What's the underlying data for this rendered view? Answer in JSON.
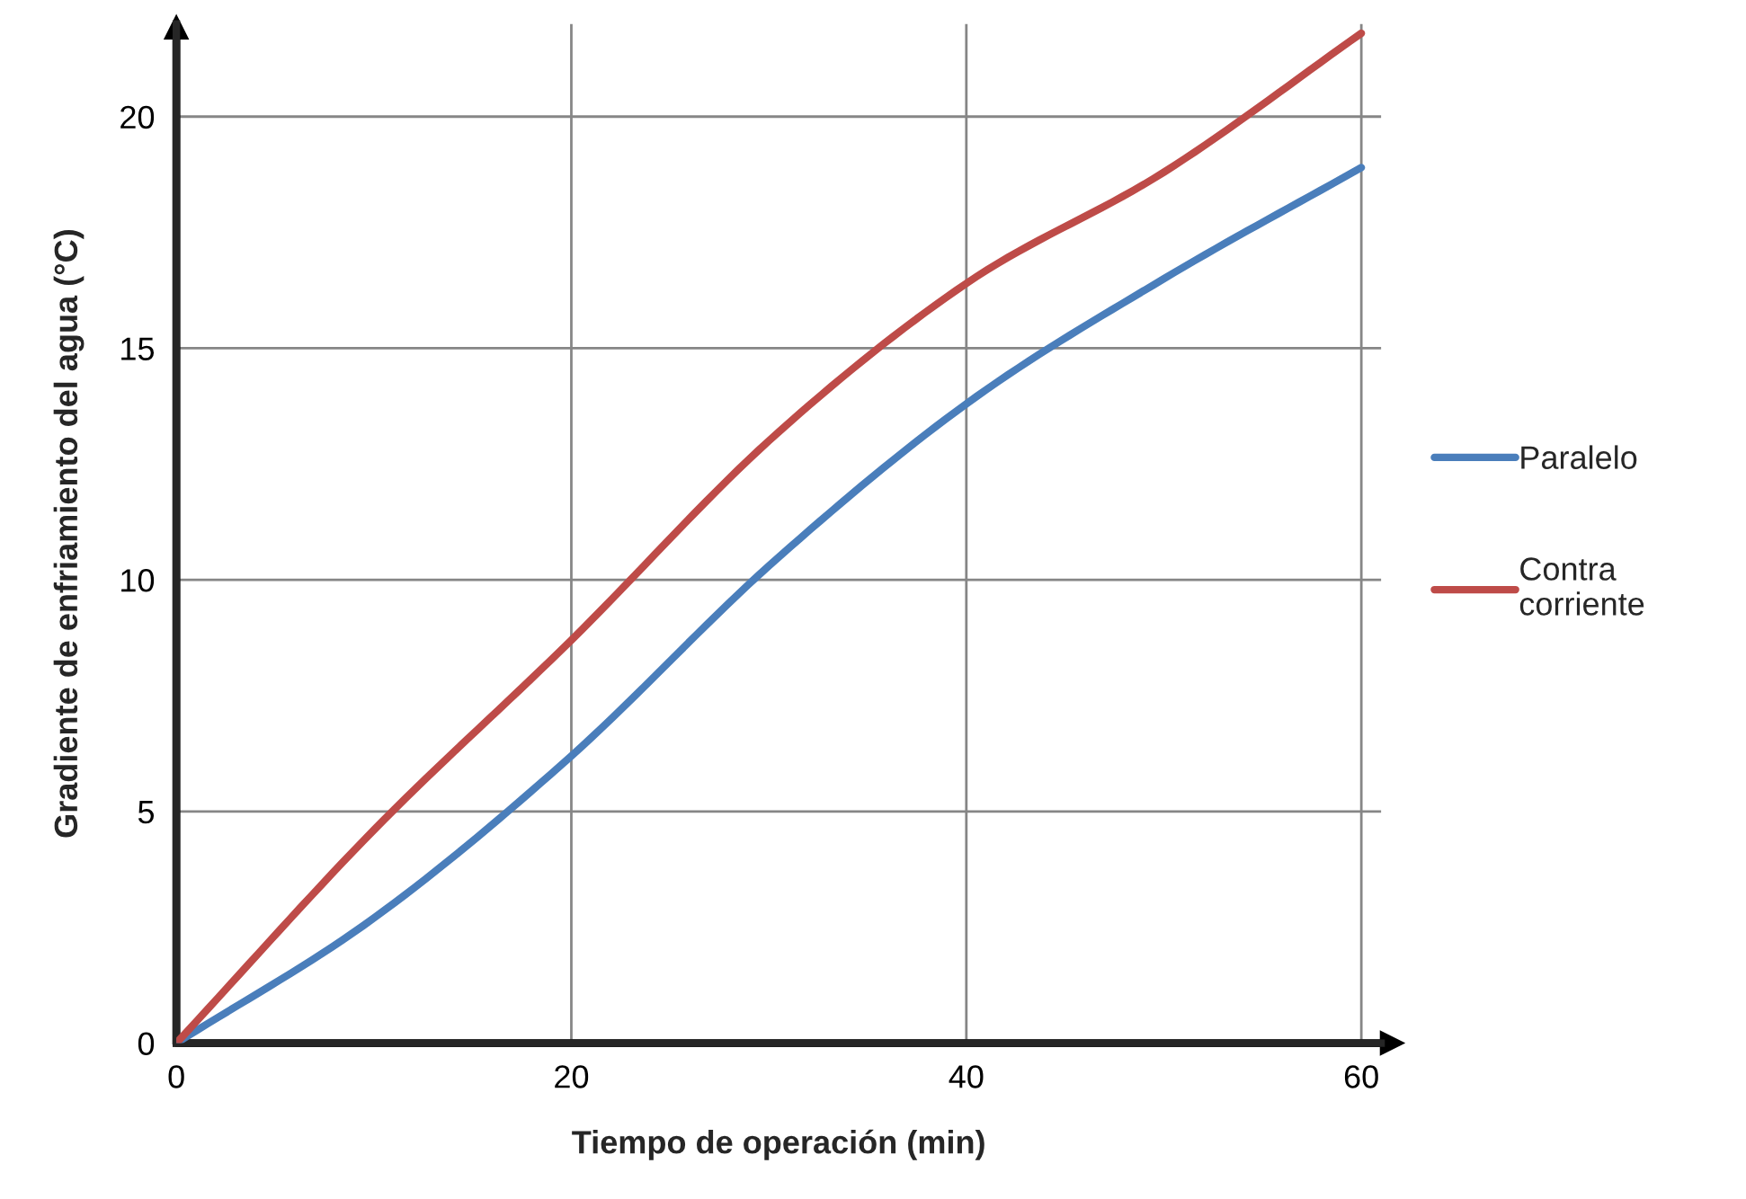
{
  "chart_data": {
    "type": "line",
    "xlabel": "Tiempo de operación (min)",
    "ylabel": "Gradiente de enfriamiento del agua (°C)",
    "x": [
      0,
      10,
      20,
      30,
      40,
      50,
      60
    ],
    "series": [
      {
        "name": "Paralelo",
        "color": "#4a7ebb",
        "values": [
          0,
          2.7,
          6.2,
          10.3,
          13.8,
          16.5,
          18.9
        ]
      },
      {
        "name": "Contra corriente",
        "color": "#be4b48",
        "values": [
          0,
          4.6,
          8.7,
          13.0,
          16.4,
          18.8,
          21.8
        ]
      }
    ],
    "xlim": [
      0,
      61
    ],
    "ylim": [
      0,
      22
    ],
    "xticks": [
      0,
      20,
      40,
      60
    ],
    "yticks": [
      0,
      5,
      10,
      15,
      20
    ],
    "grid": true,
    "legend": "right",
    "marker": "none",
    "line_style": "solid"
  }
}
